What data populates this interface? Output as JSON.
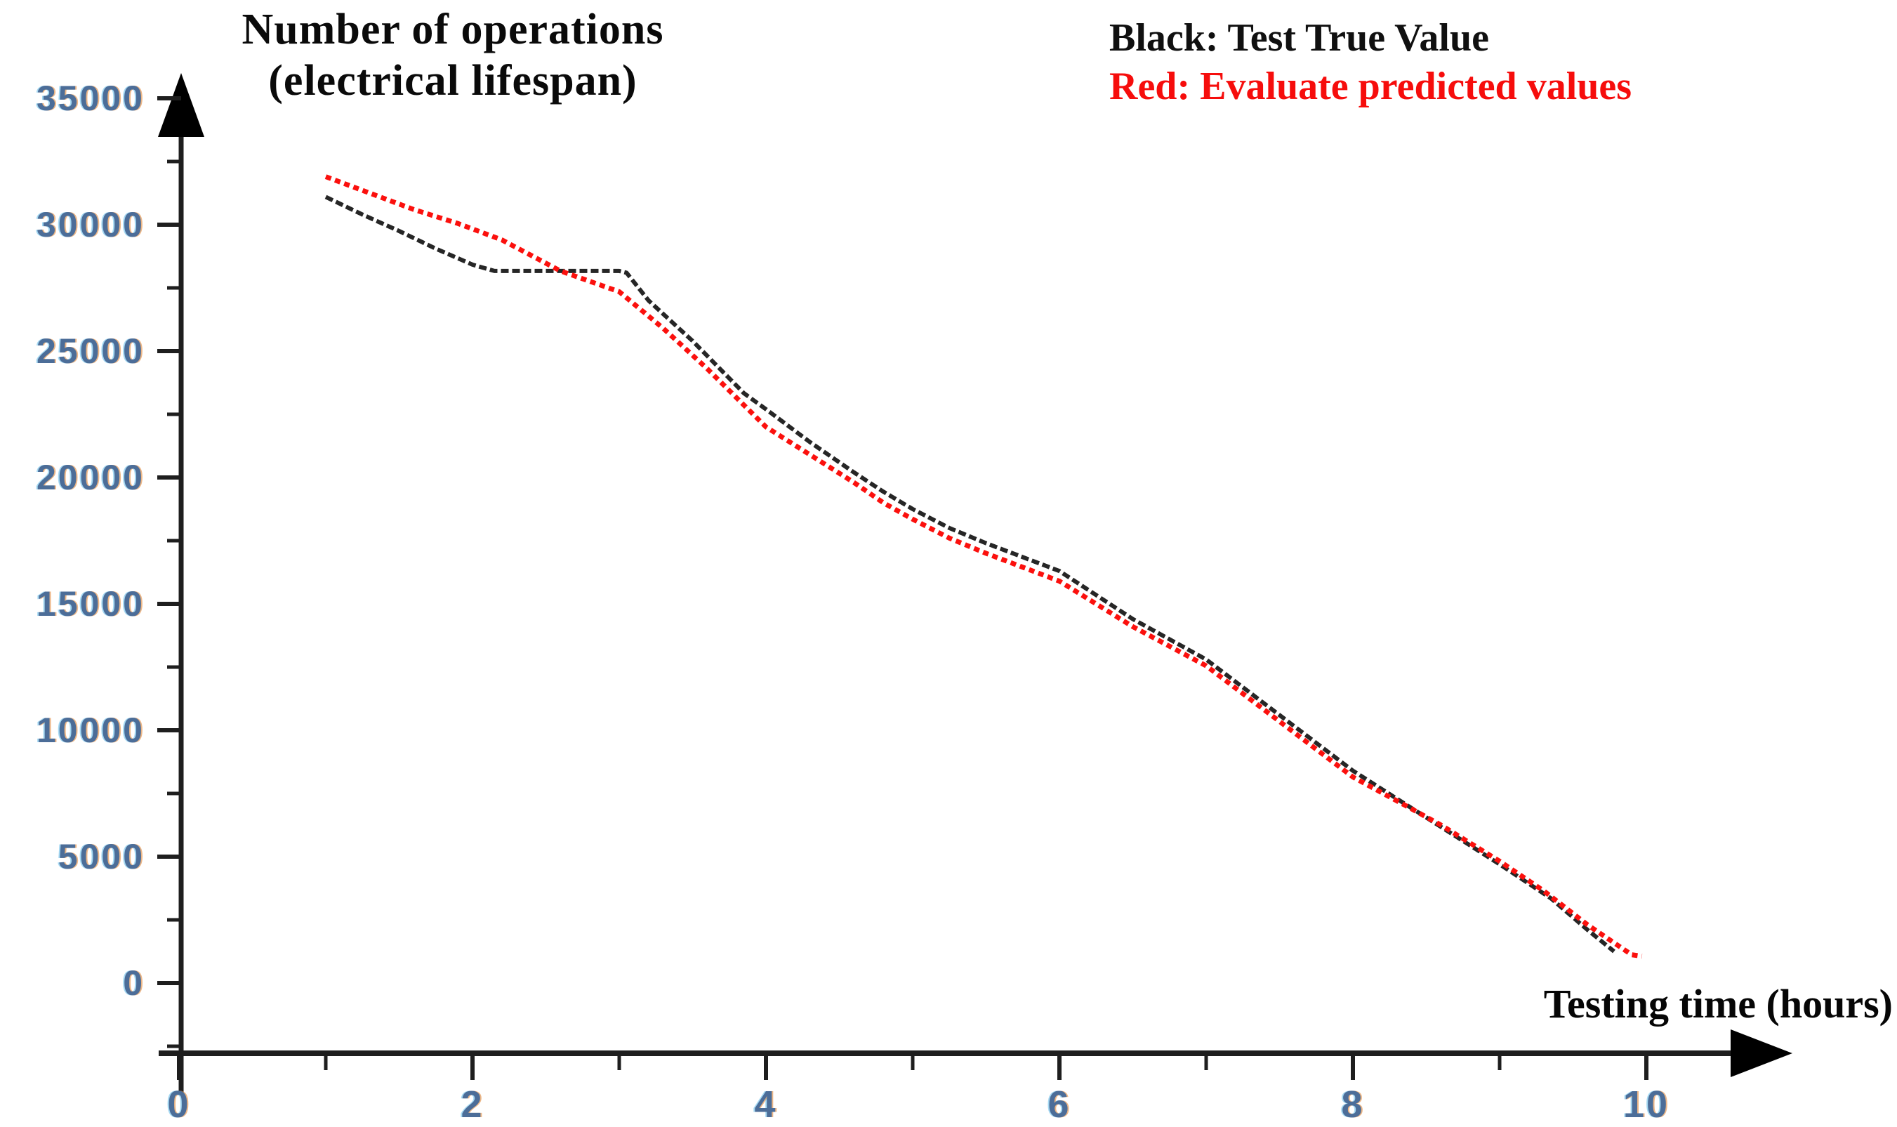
{
  "title": {
    "line1": "Number of operations",
    "line2": "(electrical lifespan)"
  },
  "legend": {
    "black_label": "Black: Test True Value",
    "red_label": "Red: Evaluate predicted values"
  },
  "x_axis": {
    "title": "Testing time (hours)",
    "tick_labels": [
      "0",
      "2",
      "4",
      "6",
      "8",
      "10"
    ]
  },
  "y_axis": {
    "tick_labels": [
      "35000",
      "30000",
      "25000",
      "20000",
      "15000",
      "10000",
      "5000",
      "0"
    ]
  },
  "colors": {
    "black_series": "#262626",
    "red_series": "#fb100d",
    "axis": "#1e1e1e",
    "tick_label": "#4c6d98",
    "legend_red_text": "#f60d0c",
    "background": "#ffffff"
  },
  "chart_data": {
    "type": "line",
    "title": "Number of operations (electrical lifespan)",
    "xlabel": "Testing time (hours)",
    "ylabel": "Number of operations (electrical lifespan)",
    "xlim": [
      0,
      11
    ],
    "ylim": [
      -2500,
      35000
    ],
    "grid": false,
    "legend_position": "top-right",
    "x_ticks": [
      0,
      2,
      4,
      6,
      8,
      10
    ],
    "y_ticks_desc": [
      35000,
      30000,
      25000,
      20000,
      15000,
      10000,
      5000,
      0
    ],
    "series": [
      {
        "name": "Test True Value",
        "color": "#262626",
        "points": [
          [
            1.0,
            31100
          ],
          [
            1.25,
            30400
          ],
          [
            1.5,
            29750
          ],
          [
            1.75,
            29050
          ],
          [
            2.0,
            28420
          ],
          [
            2.15,
            28170
          ],
          [
            2.6,
            28170
          ],
          [
            3.0,
            28170
          ],
          [
            3.05,
            28100
          ],
          [
            3.2,
            27000
          ],
          [
            3.5,
            25400
          ],
          [
            3.85,
            23330
          ],
          [
            4.0,
            22700
          ],
          [
            4.3,
            21400
          ],
          [
            4.6,
            20200
          ],
          [
            4.8,
            19440
          ],
          [
            5.0,
            18750
          ],
          [
            5.25,
            18000
          ],
          [
            5.5,
            17400
          ],
          [
            5.75,
            16850
          ],
          [
            6.0,
            16300
          ],
          [
            6.5,
            14400
          ],
          [
            7.0,
            12800
          ],
          [
            7.5,
            10600
          ],
          [
            8.0,
            8400
          ],
          [
            8.5,
            6550
          ],
          [
            9.0,
            4700
          ],
          [
            9.35,
            3350
          ],
          [
            9.6,
            2100
          ],
          [
            9.78,
            1250
          ]
        ]
      },
      {
        "name": "Evaluate predicted values",
        "color": "#fb100d",
        "points": [
          [
            1.0,
            31900
          ],
          [
            1.3,
            31250
          ],
          [
            1.6,
            30600
          ],
          [
            1.9,
            30050
          ],
          [
            2.2,
            29400
          ],
          [
            2.6,
            28170
          ],
          [
            3.0,
            27350
          ],
          [
            3.3,
            25900
          ],
          [
            3.6,
            24300
          ],
          [
            4.0,
            22000
          ],
          [
            4.3,
            20900
          ],
          [
            4.6,
            19800
          ],
          [
            4.8,
            19000
          ],
          [
            5.0,
            18350
          ],
          [
            5.25,
            17600
          ],
          [
            5.5,
            17000
          ],
          [
            5.75,
            16450
          ],
          [
            6.0,
            15900
          ],
          [
            6.5,
            14100
          ],
          [
            7.0,
            12550
          ],
          [
            7.5,
            10350
          ],
          [
            8.0,
            8150
          ],
          [
            8.35,
            7050
          ],
          [
            8.6,
            6250
          ],
          [
            9.0,
            4820
          ],
          [
            9.3,
            3650
          ],
          [
            9.6,
            2300
          ],
          [
            9.9,
            1120
          ],
          [
            9.97,
            1060
          ]
        ]
      }
    ]
  }
}
